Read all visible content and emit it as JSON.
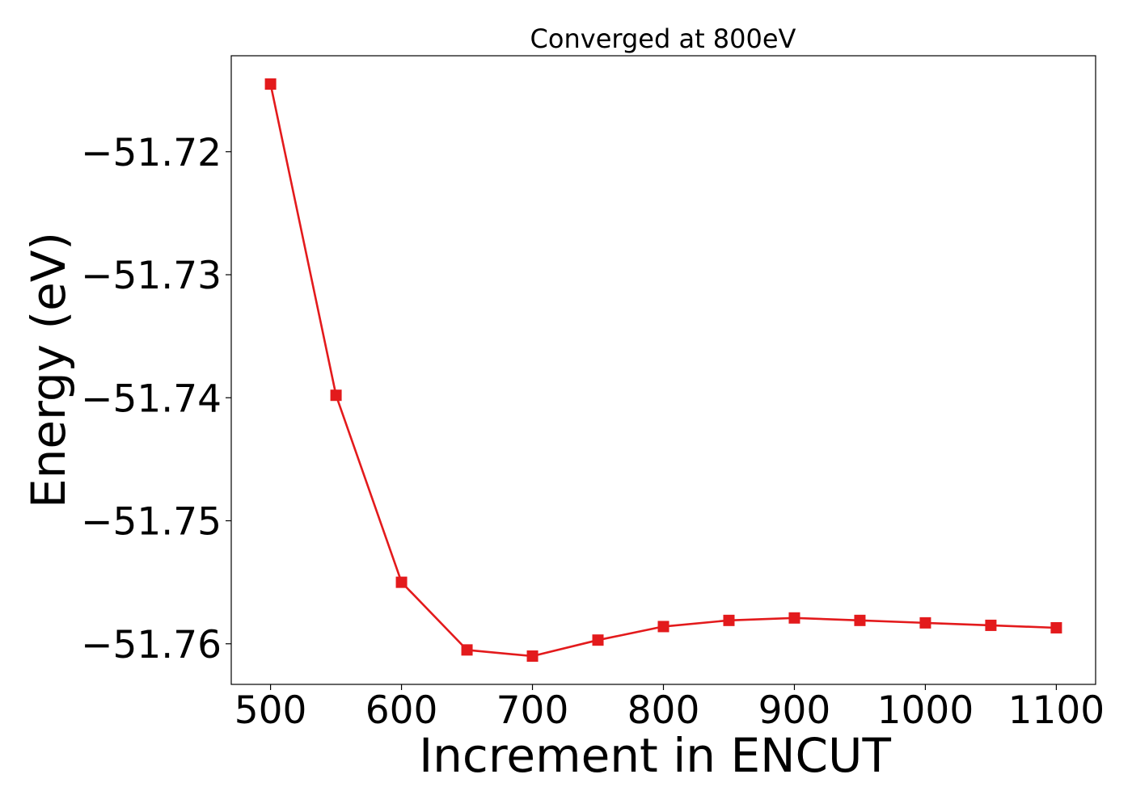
{
  "chart_data": {
    "type": "line",
    "title": "Converged at 800eV",
    "xlabel": "Increment in ENCUT",
    "ylabel": "Energy (eV)",
    "x": [
      500,
      550,
      600,
      650,
      700,
      750,
      800,
      850,
      900,
      950,
      1000,
      1050,
      1100
    ],
    "series": [
      {
        "values": [
          -51.7145,
          -51.7398,
          -51.755,
          -51.7605,
          -51.761,
          -51.7597,
          -51.7586,
          -51.7581,
          -51.7579,
          -51.7581,
          -51.7583,
          -51.7585,
          -51.7587
        ],
        "color": "#e31a1c",
        "marker": "square"
      }
    ],
    "xticks": [
      500,
      600,
      700,
      800,
      900,
      1000,
      1100
    ],
    "xtick_labels": [
      "500",
      "600",
      "700",
      "800",
      "900",
      "1000",
      "1100"
    ],
    "yticks": [
      -51.72,
      -51.73,
      -51.74,
      -51.75,
      -51.76
    ],
    "ytick_labels": [
      "−51.72",
      "−51.73",
      "−51.74",
      "−51.75",
      "−51.76"
    ],
    "xlim": [
      470,
      1130
    ],
    "ylim": [
      -51.7633,
      -51.7122
    ],
    "grid": false,
    "legend": "none"
  }
}
